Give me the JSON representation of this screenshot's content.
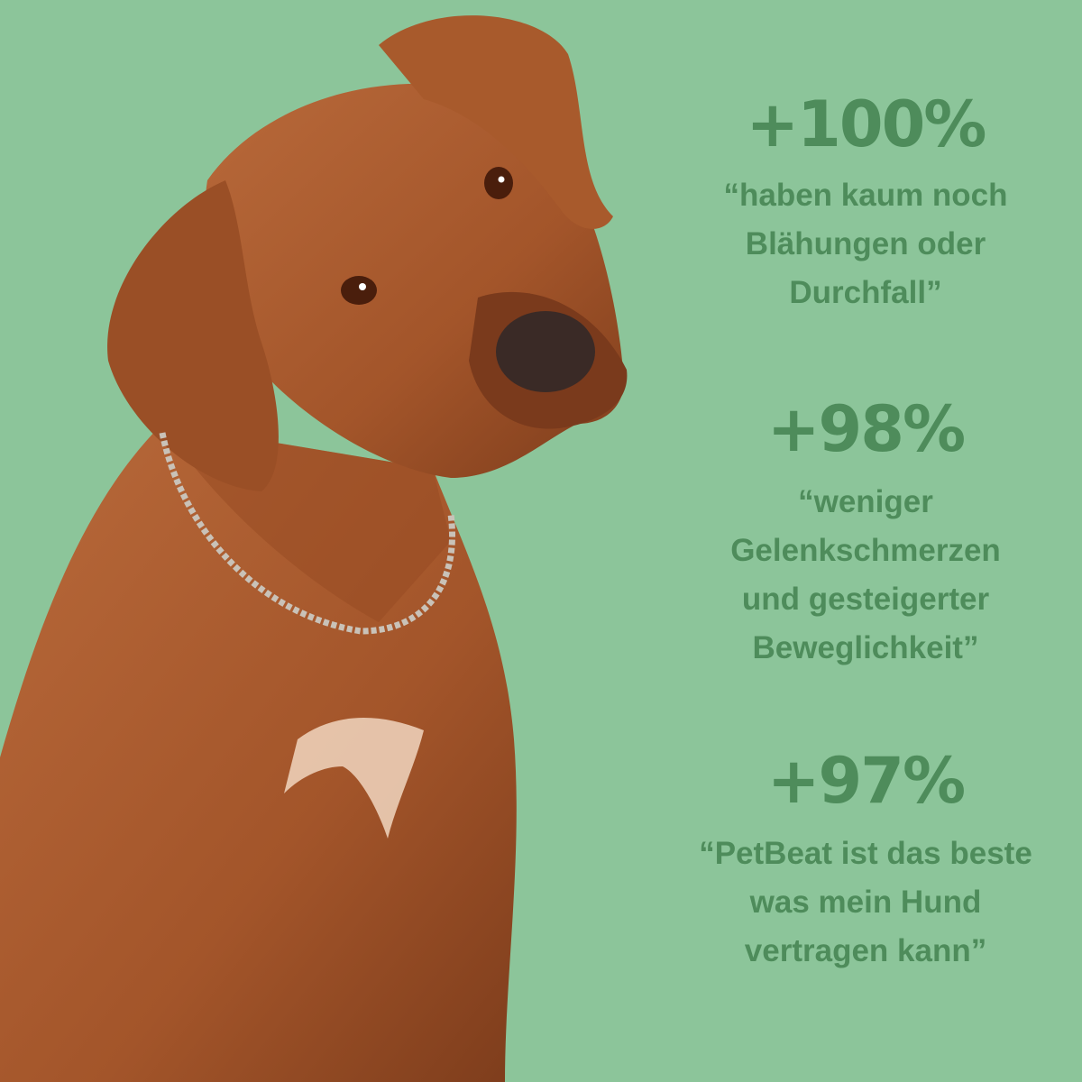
{
  "colors": {
    "background": "#8cc59a",
    "text": "#4e8c5b",
    "dog_fur": "#a85a2c"
  },
  "image": {
    "subject": "dog-photo"
  },
  "stats": [
    {
      "value": "+100%",
      "quote": "“haben kaum noch\nBlähungen oder\nDurchfall”"
    },
    {
      "value": "+98%",
      "quote": "“weniger\nGelenkschmerzen\nund gesteigerter\nBeweglichkeit”"
    },
    {
      "value": "+97%",
      "quote": "“PetBeat ist das beste\nwas mein Hund\nvertragen kann”"
    }
  ]
}
